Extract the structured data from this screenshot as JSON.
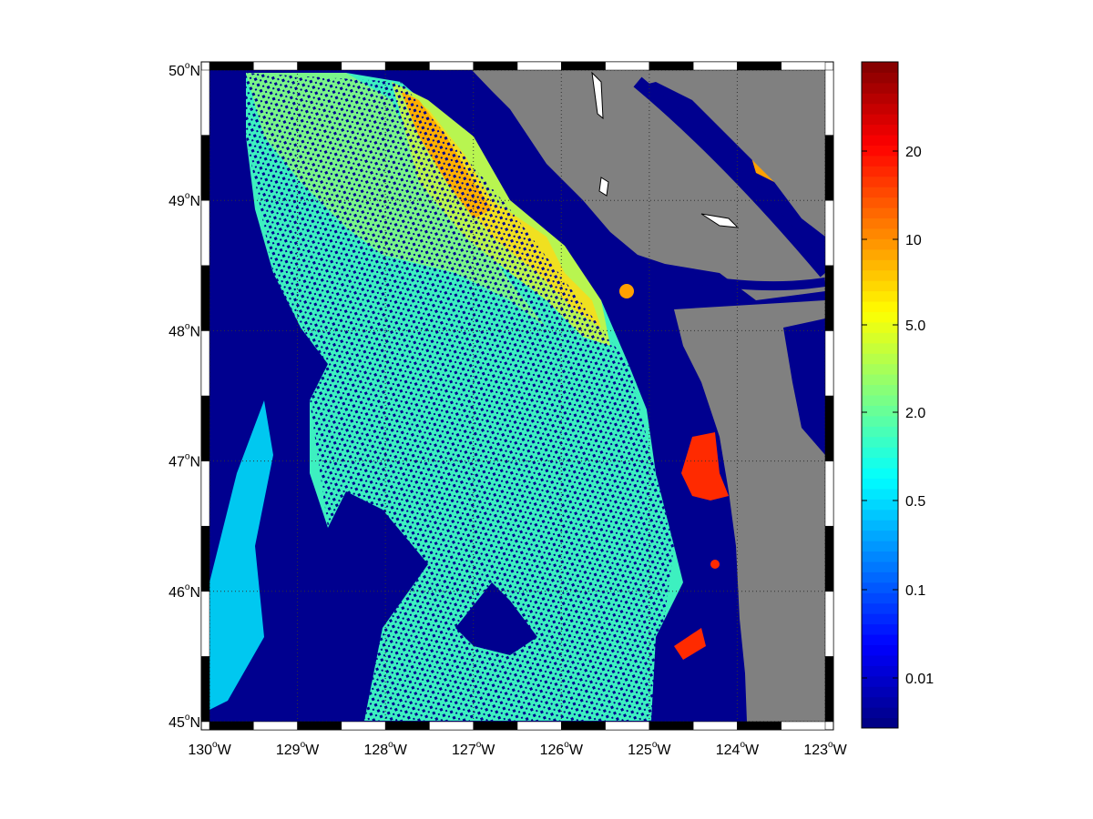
{
  "chart_data": {
    "type": "heatmap",
    "title": "",
    "xlabel": "",
    "ylabel": "",
    "xlim": [
      -130,
      -123
    ],
    "ylim": [
      45,
      50
    ],
    "x_ticks": [
      {
        "value": -130,
        "deg": "130",
        "hem": "W"
      },
      {
        "value": -129,
        "deg": "129",
        "hem": "W"
      },
      {
        "value": -128,
        "deg": "128",
        "hem": "W"
      },
      {
        "value": -127,
        "deg": "127",
        "hem": "W"
      },
      {
        "value": -126,
        "deg": "126",
        "hem": "W"
      },
      {
        "value": -125,
        "deg": "125",
        "hem": "W"
      },
      {
        "value": -124,
        "deg": "124",
        "hem": "W"
      },
      {
        "value": -123,
        "deg": "123",
        "hem": "W"
      }
    ],
    "y_ticks": [
      {
        "value": 50,
        "deg": "50",
        "hem": "N"
      },
      {
        "value": 49,
        "deg": "49",
        "hem": "N"
      },
      {
        "value": 48,
        "deg": "48",
        "hem": "N"
      },
      {
        "value": 47,
        "deg": "47",
        "hem": "N"
      },
      {
        "value": 46,
        "deg": "46",
        "hem": "N"
      },
      {
        "value": 45,
        "deg": "45",
        "hem": "N"
      }
    ],
    "grid": true,
    "colormap": "jet",
    "colorbar": {
      "placement": "right",
      "scale": "log",
      "ticks": [
        "20",
        "10",
        "5.0",
        "2.0",
        "0.5",
        "0.1",
        "0.01"
      ]
    },
    "land_color": "#808080",
    "nodata_color": "#00008f"
  }
}
